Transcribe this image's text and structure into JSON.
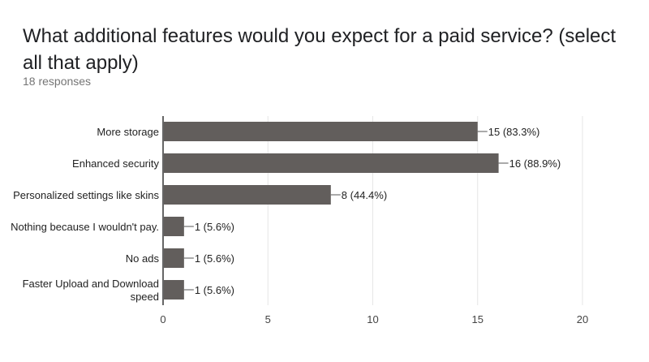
{
  "header": {
    "title": "What additional features would you expect for a paid service? (select all that apply)",
    "responses": "18 responses"
  },
  "colors": {
    "bar": "#625e5c",
    "grid": "#e6e6e6",
    "axis": "#333333"
  },
  "chart_data": {
    "type": "bar",
    "orientation": "horizontal",
    "title": "What additional features would you expect for a paid service? (select all that apply)",
    "categories": [
      [
        "More storage"
      ],
      [
        "Enhanced security"
      ],
      [
        "Personalized settings like skins"
      ],
      [
        "Nothing because I wouldn't pay."
      ],
      [
        "No ads"
      ],
      [
        "Faster Upload and Download",
        "speed"
      ]
    ],
    "values": [
      15,
      16,
      8,
      1,
      1,
      1
    ],
    "data_labels": [
      "15 (83.3%)",
      "16 (88.9%)",
      "8 (44.4%)",
      "1 (5.6%)",
      "1 (5.6%)",
      "1 (5.6%)"
    ],
    "xlim": [
      0,
      20
    ],
    "xticks": [
      0,
      5,
      10,
      15,
      20
    ],
    "xlabel": "",
    "ylabel": "",
    "grid": true,
    "legend": "none"
  }
}
